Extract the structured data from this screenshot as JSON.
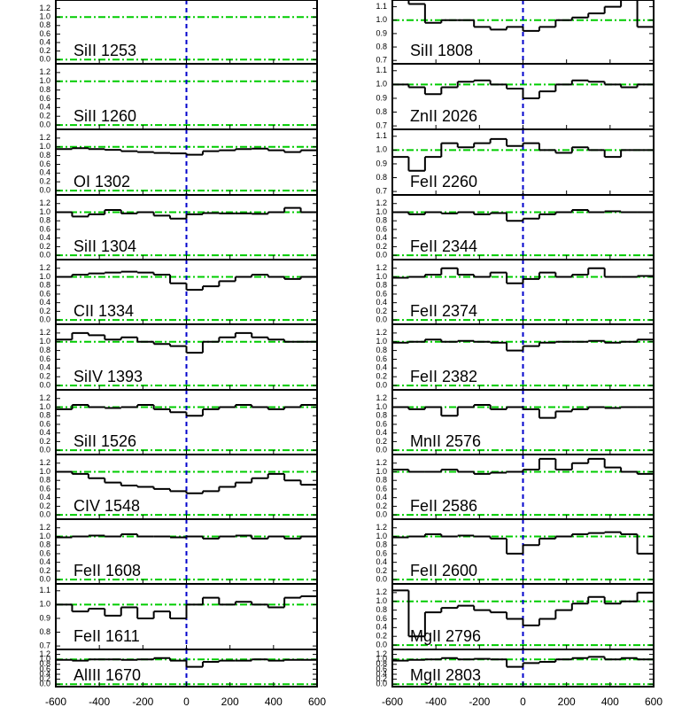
{
  "chart_data": {
    "type": "step",
    "bins": [
      -600,
      -525,
      -450,
      -375,
      -300,
      -225,
      -150,
      -75,
      0,
      75,
      150,
      225,
      300,
      375,
      450,
      525,
      600
    ],
    "xlim": [
      -600,
      600
    ],
    "xticks": [
      -600,
      -400,
      -200,
      0,
      200,
      400,
      600
    ],
    "hlines": [
      0,
      1
    ],
    "hline_color": "#00cc00",
    "vline": 0,
    "vline_color": "#0000cc",
    "color": "#000000",
    "panels": [
      {
        "title": "SiII 1253",
        "ylim": [
          -0.1,
          1.4
        ],
        "yticks": [
          {
            "value": 0,
            "label": "0.0"
          },
          0.2,
          0.4,
          0.6,
          0.8,
          {
            "value": 1,
            "label": "1.0"
          },
          1.2
        ],
        "values": [
          null,
          null,
          null,
          null,
          null,
          null,
          null,
          null,
          null,
          null,
          null,
          null,
          null,
          null,
          null,
          null
        ]
      },
      {
        "title": "SiII 1260",
        "ylim": [
          -0.1,
          1.4
        ],
        "yticks": [
          {
            "value": 0,
            "label": "0.0"
          },
          0.2,
          0.4,
          0.6,
          0.8,
          {
            "value": 1,
            "label": "1.0"
          },
          1.2
        ],
        "values": [
          null,
          null,
          null,
          null,
          null,
          null,
          null,
          null,
          null,
          null,
          null,
          null,
          null,
          null,
          null,
          null
        ]
      },
      {
        "title": "OI 1302",
        "ylim": [
          -0.1,
          1.4
        ],
        "yticks": [
          {
            "value": 0,
            "label": "0.0"
          },
          0.2,
          0.4,
          0.6,
          0.8,
          {
            "value": 1,
            "label": "1.0"
          },
          1.2
        ],
        "values": [
          0.95,
          0.97,
          0.95,
          0.93,
          0.9,
          0.88,
          0.86,
          0.85,
          0.82,
          0.9,
          0.92,
          0.95,
          0.96,
          0.92,
          0.88,
          0.92
        ]
      },
      {
        "title": "SiII 1304",
        "ylim": [
          -0.1,
          1.4
        ],
        "yticks": [
          {
            "value": 0,
            "label": "0.0"
          },
          0.2,
          0.4,
          0.6,
          0.8,
          {
            "value": 1,
            "label": "1.0"
          },
          1.2
        ],
        "values": [
          1.0,
          0.9,
          0.95,
          1.05,
          0.97,
          1.0,
          0.92,
          0.85,
          0.95,
          0.98,
          0.97,
          0.97,
          0.96,
          1.0,
          1.1,
          1.0
        ]
      },
      {
        "title": "CII 1334",
        "ylim": [
          -0.1,
          1.4
        ],
        "yticks": [
          {
            "value": 0,
            "label": "0.0"
          },
          0.2,
          0.4,
          0.6,
          0.8,
          {
            "value": 1,
            "label": "1.0"
          },
          1.2
        ],
        "values": [
          1.0,
          1.05,
          1.08,
          1.1,
          1.12,
          1.1,
          1.05,
          0.85,
          0.7,
          0.78,
          0.9,
          1.0,
          1.05,
          1.0,
          0.95,
          1.0
        ]
      },
      {
        "title": "SiIV 1393",
        "ylim": [
          -0.1,
          1.4
        ],
        "yticks": [
          {
            "value": 0,
            "label": "0.0"
          },
          0.2,
          0.4,
          0.6,
          0.8,
          {
            "value": 1,
            "label": "1.0"
          },
          1.2
        ],
        "values": [
          1.05,
          1.2,
          1.15,
          1.05,
          1.1,
          1.0,
          0.95,
          0.9,
          0.75,
          1.0,
          1.1,
          1.2,
          1.1,
          1.05,
          1.0,
          1.0
        ]
      },
      {
        "title": "SiII 1526",
        "ylim": [
          -0.1,
          1.4
        ],
        "yticks": [
          {
            "value": 0,
            "label": "0.0"
          },
          0.2,
          0.4,
          0.6,
          0.8,
          {
            "value": 1,
            "label": "1.0"
          },
          1.2
        ],
        "values": [
          0.95,
          1.05,
          1.0,
          0.98,
          1.0,
          1.05,
          0.95,
          0.88,
          0.8,
          0.95,
          1.0,
          1.05,
          1.0,
          0.95,
          1.0,
          1.05
        ]
      },
      {
        "title": "CIV 1548",
        "ylim": [
          -0.1,
          1.4
        ],
        "yticks": [
          {
            "value": 0,
            "label": "0.0"
          },
          0.2,
          0.4,
          0.6,
          0.8,
          {
            "value": 1,
            "label": "1.0"
          },
          1.2
        ],
        "values": [
          1.0,
          0.95,
          0.85,
          0.75,
          0.68,
          0.65,
          0.6,
          0.55,
          0.5,
          0.55,
          0.65,
          0.75,
          0.85,
          0.95,
          0.8,
          0.7
        ]
      },
      {
        "title": "FeII 1608",
        "ylim": [
          -0.1,
          1.4
        ],
        "yticks": [
          {
            "value": 0,
            "label": "0.0"
          },
          0.2,
          0.4,
          0.6,
          0.8,
          {
            "value": 1,
            "label": "1.0"
          },
          1.2
        ],
        "values": [
          0.98,
          1.0,
          1.02,
          1.0,
          1.05,
          1.0,
          1.0,
          0.98,
          1.0,
          0.95,
          1.0,
          1.02,
          0.95,
          1.0,
          0.95,
          1.0
        ]
      },
      {
        "title": "FeII 1611",
        "ylim": [
          0.675,
          1.15
        ],
        "yticks": [
          0.7,
          0.8,
          0.9,
          {
            "value": 1,
            "label": "1.0"
          },
          1.1
        ],
        "values": [
          1.0,
          0.95,
          0.97,
          0.92,
          0.98,
          0.9,
          0.95,
          0.9,
          1.0,
          1.05,
          1.0,
          1.02,
          1.0,
          0.98,
          1.05,
          1.06
        ]
      },
      {
        "title": "AlIII 1670",
        "ylim": [
          -0.1,
          1.4
        ],
        "yticks": [
          {
            "value": 0,
            "label": "0.0"
          },
          0.2,
          0.4,
          0.6,
          0.8,
          {
            "value": 1,
            "label": "1.0"
          },
          1.2
        ],
        "values": [
          0.98,
          0.95,
          1.0,
          1.0,
          0.98,
          1.0,
          1.05,
          0.95,
          0.7,
          0.9,
          0.95,
          0.95,
          1.0,
          0.95,
          0.98,
          0.98
        ]
      },
      {
        "title": "SiII 1808",
        "ylim": [
          0.675,
          1.15
        ],
        "yticks": [
          0.7,
          0.8,
          0.9,
          {
            "value": 1,
            "label": "1.0"
          },
          1.1
        ],
        "values": [
          1.15,
          1.12,
          0.98,
          1.0,
          1.0,
          0.95,
          0.93,
          0.95,
          0.92,
          0.95,
          1.0,
          1.02,
          1.05,
          1.1,
          1.15,
          0.95
        ]
      },
      {
        "title": "ZnII 2026",
        "ylim": [
          0.675,
          1.15
        ],
        "yticks": [
          0.7,
          0.8,
          0.9,
          {
            "value": 1,
            "label": "1.0"
          },
          1.1
        ],
        "values": [
          1.0,
          0.98,
          0.93,
          0.98,
          1.02,
          1.03,
          1.0,
          0.97,
          0.9,
          0.95,
          1.0,
          1.03,
          1.02,
          1.0,
          0.98,
          1.0
        ]
      },
      {
        "title": "FeII 2260",
        "ylim": [
          0.675,
          1.15
        ],
        "yticks": [
          0.7,
          0.8,
          0.9,
          {
            "value": 1,
            "label": "1.0"
          },
          1.1
        ],
        "values": [
          0.95,
          0.85,
          0.95,
          1.05,
          1.02,
          1.05,
          1.08,
          1.03,
          1.05,
          1.0,
          0.98,
          1.02,
          1.0,
          0.95,
          1.0,
          1.0
        ]
      },
      {
        "title": "FeII 2344",
        "ylim": [
          -0.1,
          1.4
        ],
        "yticks": [
          {
            "value": 0,
            "label": "0.0"
          },
          0.2,
          0.4,
          0.6,
          0.8,
          {
            "value": 1,
            "label": "1.0"
          },
          1.2
        ],
        "values": [
          1.0,
          0.95,
          1.0,
          0.97,
          1.0,
          0.95,
          0.98,
          0.8,
          0.85,
          0.95,
          1.0,
          1.05,
          1.0,
          1.02,
          1.0,
          1.0
        ]
      },
      {
        "title": "FeII 2374",
        "ylim": [
          -0.1,
          1.4
        ],
        "yticks": [
          {
            "value": 0,
            "label": "0.0"
          },
          0.2,
          0.4,
          0.6,
          0.8,
          {
            "value": 1,
            "label": "1.0"
          },
          1.2
        ],
        "values": [
          0.98,
          1.0,
          1.05,
          1.2,
          1.05,
          1.0,
          1.1,
          0.85,
          0.95,
          1.1,
          1.0,
          1.05,
          1.2,
          1.0,
          1.0,
          1.02
        ]
      },
      {
        "title": "FeII 2382",
        "ylim": [
          -0.1,
          1.4
        ],
        "yticks": [
          {
            "value": 0,
            "label": "0.0"
          },
          0.2,
          0.4,
          0.6,
          0.8,
          {
            "value": 1,
            "label": "1.0"
          },
          1.2
        ],
        "values": [
          0.98,
          1.0,
          1.05,
          1.0,
          1.02,
          1.0,
          0.98,
          0.8,
          0.9,
          0.98,
          1.0,
          1.0,
          1.02,
          0.98,
          1.0,
          1.05
        ]
      },
      {
        "title": "MnII 2576",
        "ylim": [
          -0.1,
          1.4
        ],
        "yticks": [
          {
            "value": 0,
            "label": "0.0"
          },
          0.2,
          0.4,
          0.6,
          0.8,
          {
            "value": 1,
            "label": "1.0"
          },
          1.2
        ],
        "values": [
          1.0,
          0.95,
          1.0,
          0.8,
          1.0,
          1.05,
          0.95,
          1.0,
          0.95,
          0.75,
          0.9,
          0.95,
          1.0,
          0.98,
          1.0,
          1.0
        ]
      },
      {
        "title": "FeII 2586",
        "ylim": [
          -0.1,
          1.4
        ],
        "yticks": [
          {
            "value": 0,
            "label": "0.0"
          },
          0.2,
          0.4,
          0.6,
          0.8,
          {
            "value": 1,
            "label": "1.0"
          },
          1.2
        ],
        "values": [
          1.05,
          1.0,
          1.0,
          1.05,
          1.0,
          0.95,
          0.98,
          1.0,
          1.05,
          1.3,
          1.05,
          1.2,
          1.3,
          1.1,
          1.0,
          0.95
        ]
      },
      {
        "title": "FeII 2600",
        "ylim": [
          -0.1,
          1.4
        ],
        "yticks": [
          {
            "value": 0,
            "label": "0.0"
          },
          0.2,
          0.4,
          0.6,
          0.8,
          {
            "value": 1,
            "label": "1.0"
          },
          1.2
        ],
        "values": [
          0.98,
          1.0,
          1.05,
          1.0,
          1.02,
          1.0,
          0.95,
          0.6,
          0.8,
          0.95,
          1.0,
          1.05,
          1.08,
          1.1,
          1.05,
          0.6
        ]
      },
      {
        "title": "MgII 2796",
        "ylim": [
          -0.1,
          1.4
        ],
        "yticks": [
          {
            "value": 0,
            "label": "0.0"
          },
          0.2,
          0.4,
          0.6,
          0.8,
          {
            "value": 1,
            "label": "1.0"
          },
          1.2
        ],
        "values": [
          1.25,
          0.2,
          0.75,
          0.85,
          0.9,
          0.8,
          0.75,
          0.6,
          0.45,
          0.6,
          0.8,
          0.95,
          1.1,
          0.95,
          1.0,
          1.2
        ]
      },
      {
        "title": "MgII 2803",
        "ylim": [
          -0.1,
          1.4
        ],
        "yticks": [
          {
            "value": 0,
            "label": "0.0"
          },
          0.2,
          0.4,
          0.6,
          0.8,
          {
            "value": 1,
            "label": "1.0"
          },
          1.2
        ],
        "values": [
          0.95,
          0.98,
          1.0,
          1.05,
          1.0,
          1.02,
          1.0,
          0.7,
          0.85,
          0.9,
          1.0,
          1.05,
          1.1,
          1.0,
          1.05,
          1.0
        ]
      }
    ]
  }
}
